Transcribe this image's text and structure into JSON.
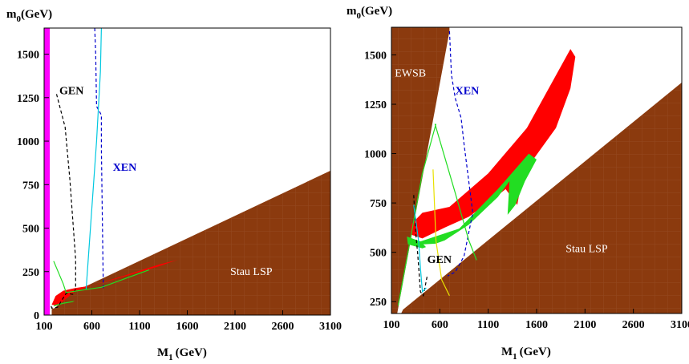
{
  "chart_data": [
    {
      "type": "area",
      "xlabel": "M",
      "xlabel_sub": "1",
      "xlabel_unit": "(GeV)",
      "ylabel": "m",
      "ylabel_sub": "0",
      "ylabel_unit": "(GeV)",
      "xlim": [
        100,
        3100
      ],
      "ylim": [
        0,
        1650
      ],
      "x_ticks": [
        100,
        600,
        1100,
        1600,
        2100,
        2600,
        3100
      ],
      "y_ticks": [
        0,
        250,
        500,
        750,
        1000,
        1250,
        1500
      ],
      "grid": false,
      "colors": {
        "excluded": "#8b3a0e",
        "red": "#ff0000",
        "green": "#22dd22",
        "magenta": "#ff00ff",
        "cyan": "#00c8e0",
        "blue": "#0000cc",
        "black": "#000000"
      },
      "regions": [
        {
          "label": "Stau LSP",
          "color": "#8b3a0e",
          "points": [
            [
              180,
              0
            ],
            [
              3100,
              0
            ],
            [
              3100,
              830
            ],
            [
              400,
              130
            ],
            [
              210,
              40
            ],
            [
              180,
              35
            ]
          ]
        },
        {
          "label": "",
          "color": "#ff00ff",
          "points": [
            [
              100,
              0
            ],
            [
              160,
              0
            ],
            [
              160,
              1650
            ],
            [
              100,
              1650
            ]
          ]
        },
        {
          "label": "",
          "color": "#ff0000",
          "points": [
            [
              180,
              60
            ],
            [
              220,
              110
            ],
            [
              300,
              140
            ],
            [
              420,
              155
            ],
            [
              600,
              170
            ],
            [
              900,
              215
            ],
            [
              1300,
              280
            ],
            [
              1500,
              318
            ],
            [
              1300,
              290
            ],
            [
              900,
              220
            ],
            [
              600,
              170
            ],
            [
              420,
              135
            ],
            [
              300,
              80
            ],
            [
              220,
              55
            ]
          ]
        },
        {
          "label": "",
          "color": "#22dd22",
          "points": [
            [
              200,
              50
            ],
            [
              300,
              65
            ],
            [
              400,
              75
            ],
            [
              420,
              82
            ],
            [
              310,
              72
            ],
            [
              210,
              58
            ]
          ]
        }
      ],
      "curves": [
        {
          "label": "GEN",
          "color": "#000000",
          "style": "dashed",
          "points": [
            [
              230,
              1270
            ],
            [
              320,
              1080
            ],
            [
              370,
              780
            ],
            [
              430,
              320
            ],
            [
              430,
              150
            ],
            [
              400,
              120
            ],
            [
              330,
              125
            ],
            [
              240,
              45
            ],
            [
              180,
              40
            ],
            [
              170,
              60
            ]
          ]
        },
        {
          "label": "XEN",
          "color": "#0000cc",
          "style": "dashed",
          "points": [
            [
              630,
              1650
            ],
            [
              640,
              1500
            ],
            [
              650,
              1200
            ],
            [
              700,
              1150
            ],
            [
              700,
              960
            ],
            [
              720,
              150
            ]
          ]
        },
        {
          "label": "",
          "color": "#00c8e0",
          "style": "solid",
          "points": [
            [
              700,
              1650
            ],
            [
              690,
              1400
            ],
            [
              650,
              1000
            ],
            [
              560,
              300
            ],
            [
              540,
              150
            ]
          ]
        },
        {
          "label": "",
          "color": "#22dd22",
          "style": "solid",
          "points": [
            [
              200,
              310
            ],
            [
              300,
              180
            ],
            [
              330,
              130
            ],
            [
              700,
              160
            ],
            [
              1200,
              260
            ]
          ]
        }
      ],
      "annotations": [
        {
          "text": "GEN",
          "x": 260,
          "y": 1270,
          "color": "#000000"
        },
        {
          "text": "XEN",
          "x": 820,
          "y": 830,
          "color": "#0000cc"
        },
        {
          "text": "Stau LSP",
          "x": 2050,
          "y": 230,
          "color": "#ffffff"
        }
      ]
    },
    {
      "type": "area",
      "xlabel": "M",
      "xlabel_sub": "1",
      "xlabel_unit": "(GeV)",
      "ylabel": "m",
      "ylabel_sub": "0",
      "ylabel_unit": "(GeV)",
      "xlim": [
        100,
        3100
      ],
      "ylim": [
        190,
        1640
      ],
      "x_ticks": [
        100,
        600,
        1100,
        1600,
        2100,
        2600,
        3100
      ],
      "y_ticks": [
        250,
        500,
        750,
        1000,
        1250,
        1500
      ],
      "grid": false,
      "colors": {
        "excluded": "#8b3a0e",
        "red": "#ff0000",
        "green": "#22dd22",
        "cyan": "#00c8e0",
        "blue": "#0000cc",
        "yellow": "#e8e000",
        "black": "#000000"
      },
      "regions": [
        {
          "label": "EWSB",
          "color": "#8b3a0e",
          "points": [
            [
              100,
              1640
            ],
            [
              100,
              190
            ],
            [
              160,
              190
            ],
            [
              700,
              1620
            ],
            [
              700,
              1640
            ]
          ]
        },
        {
          "label": "Stau LSP",
          "color": "#8b3a0e",
          "points": [
            [
              200,
              190
            ],
            [
              3100,
              190
            ],
            [
              3100,
              1360
            ],
            [
              220,
              210
            ]
          ]
        },
        {
          "label": "",
          "color": "#ff0000",
          "points": [
            [
              300,
              640
            ],
            [
              420,
              700
            ],
            [
              700,
              730
            ],
            [
              1100,
              900
            ],
            [
              1500,
              1130
            ],
            [
              1950,
              1530
            ],
            [
              2000,
              1490
            ],
            [
              1950,
              1330
            ],
            [
              1800,
              1130
            ],
            [
              1550,
              960
            ],
            [
              1430,
              820
            ],
            [
              1400,
              740
            ],
            [
              1280,
              820
            ],
            [
              1150,
              770
            ],
            [
              900,
              680
            ],
            [
              650,
              625
            ],
            [
              420,
              570
            ],
            [
              300,
              590
            ]
          ]
        },
        {
          "label": "",
          "color": "#22dd22",
          "points": [
            [
              260,
              580
            ],
            [
              400,
              555
            ],
            [
              800,
              620
            ],
            [
              1200,
              820
            ],
            [
              1520,
              1000
            ],
            [
              1600,
              970
            ],
            [
              1480,
              860
            ],
            [
              1380,
              740
            ],
            [
              1300,
              690
            ],
            [
              1320,
              860
            ],
            [
              1200,
              780
            ],
            [
              900,
              640
            ],
            [
              650,
              560
            ],
            [
              420,
              520
            ],
            [
              270,
              540
            ]
          ]
        },
        {
          "label": "",
          "color": "#ffffff",
          "points": [
            [
              430,
              540
            ],
            [
              550,
              480
            ],
            [
              800,
              520
            ],
            [
              1100,
              660
            ],
            [
              1250,
              780
            ],
            [
              1300,
              790
            ],
            [
              1300,
              720
            ],
            [
              1150,
              620
            ],
            [
              900,
              570
            ],
            [
              600,
              545
            ]
          ]
        }
      ],
      "curves": [
        {
          "label": "XEN",
          "color": "#0000cc",
          "style": "dashed",
          "points": [
            [
              700,
              1620
            ],
            [
              720,
              1400
            ],
            [
              760,
              1280
            ],
            [
              820,
              1180
            ],
            [
              850,
              1050
            ],
            [
              940,
              700
            ],
            [
              850,
              480
            ],
            [
              760,
              400
            ],
            [
              680,
              380
            ]
          ]
        },
        {
          "label": "GEN",
          "color": "#000000",
          "style": "dashed",
          "points": [
            [
              330,
              790
            ],
            [
              350,
              600
            ],
            [
              370,
              500
            ],
            [
              400,
              300
            ],
            [
              430,
              280
            ],
            [
              470,
              380
            ]
          ]
        },
        {
          "label": "",
          "color": "#22dd22",
          "style": "solid",
          "points": [
            [
              550,
              1150
            ],
            [
              760,
              800
            ],
            [
              900,
              560
            ],
            [
              980,
              460
            ]
          ]
        },
        {
          "label": "",
          "color": "#22dd22",
          "style": "solid",
          "points": [
            [
              170,
              230
            ],
            [
              320,
              630
            ],
            [
              420,
              900
            ],
            [
              560,
              1150
            ]
          ]
        },
        {
          "label": "",
          "color": "#00c8e0",
          "style": "solid",
          "points": [
            [
              330,
              740
            ],
            [
              380,
              560
            ],
            [
              400,
              420
            ],
            [
              420,
              300
            ],
            [
              460,
              320
            ]
          ]
        },
        {
          "label": "",
          "color": "#e8e000",
          "style": "solid",
          "points": [
            [
              530,
              920
            ],
            [
              560,
              560
            ],
            [
              620,
              360
            ],
            [
              700,
              280
            ]
          ]
        }
      ],
      "annotations": [
        {
          "text": "EWSB",
          "x": 135,
          "y": 1390,
          "color": "#ffffff"
        },
        {
          "text": "XEN",
          "x": 760,
          "y": 1300,
          "color": "#0000cc"
        },
        {
          "text": "GEN",
          "x": 470,
          "y": 445,
          "color": "#000000"
        },
        {
          "text": "Stau LSP",
          "x": 1900,
          "y": 500,
          "color": "#ffffff"
        }
      ]
    }
  ]
}
